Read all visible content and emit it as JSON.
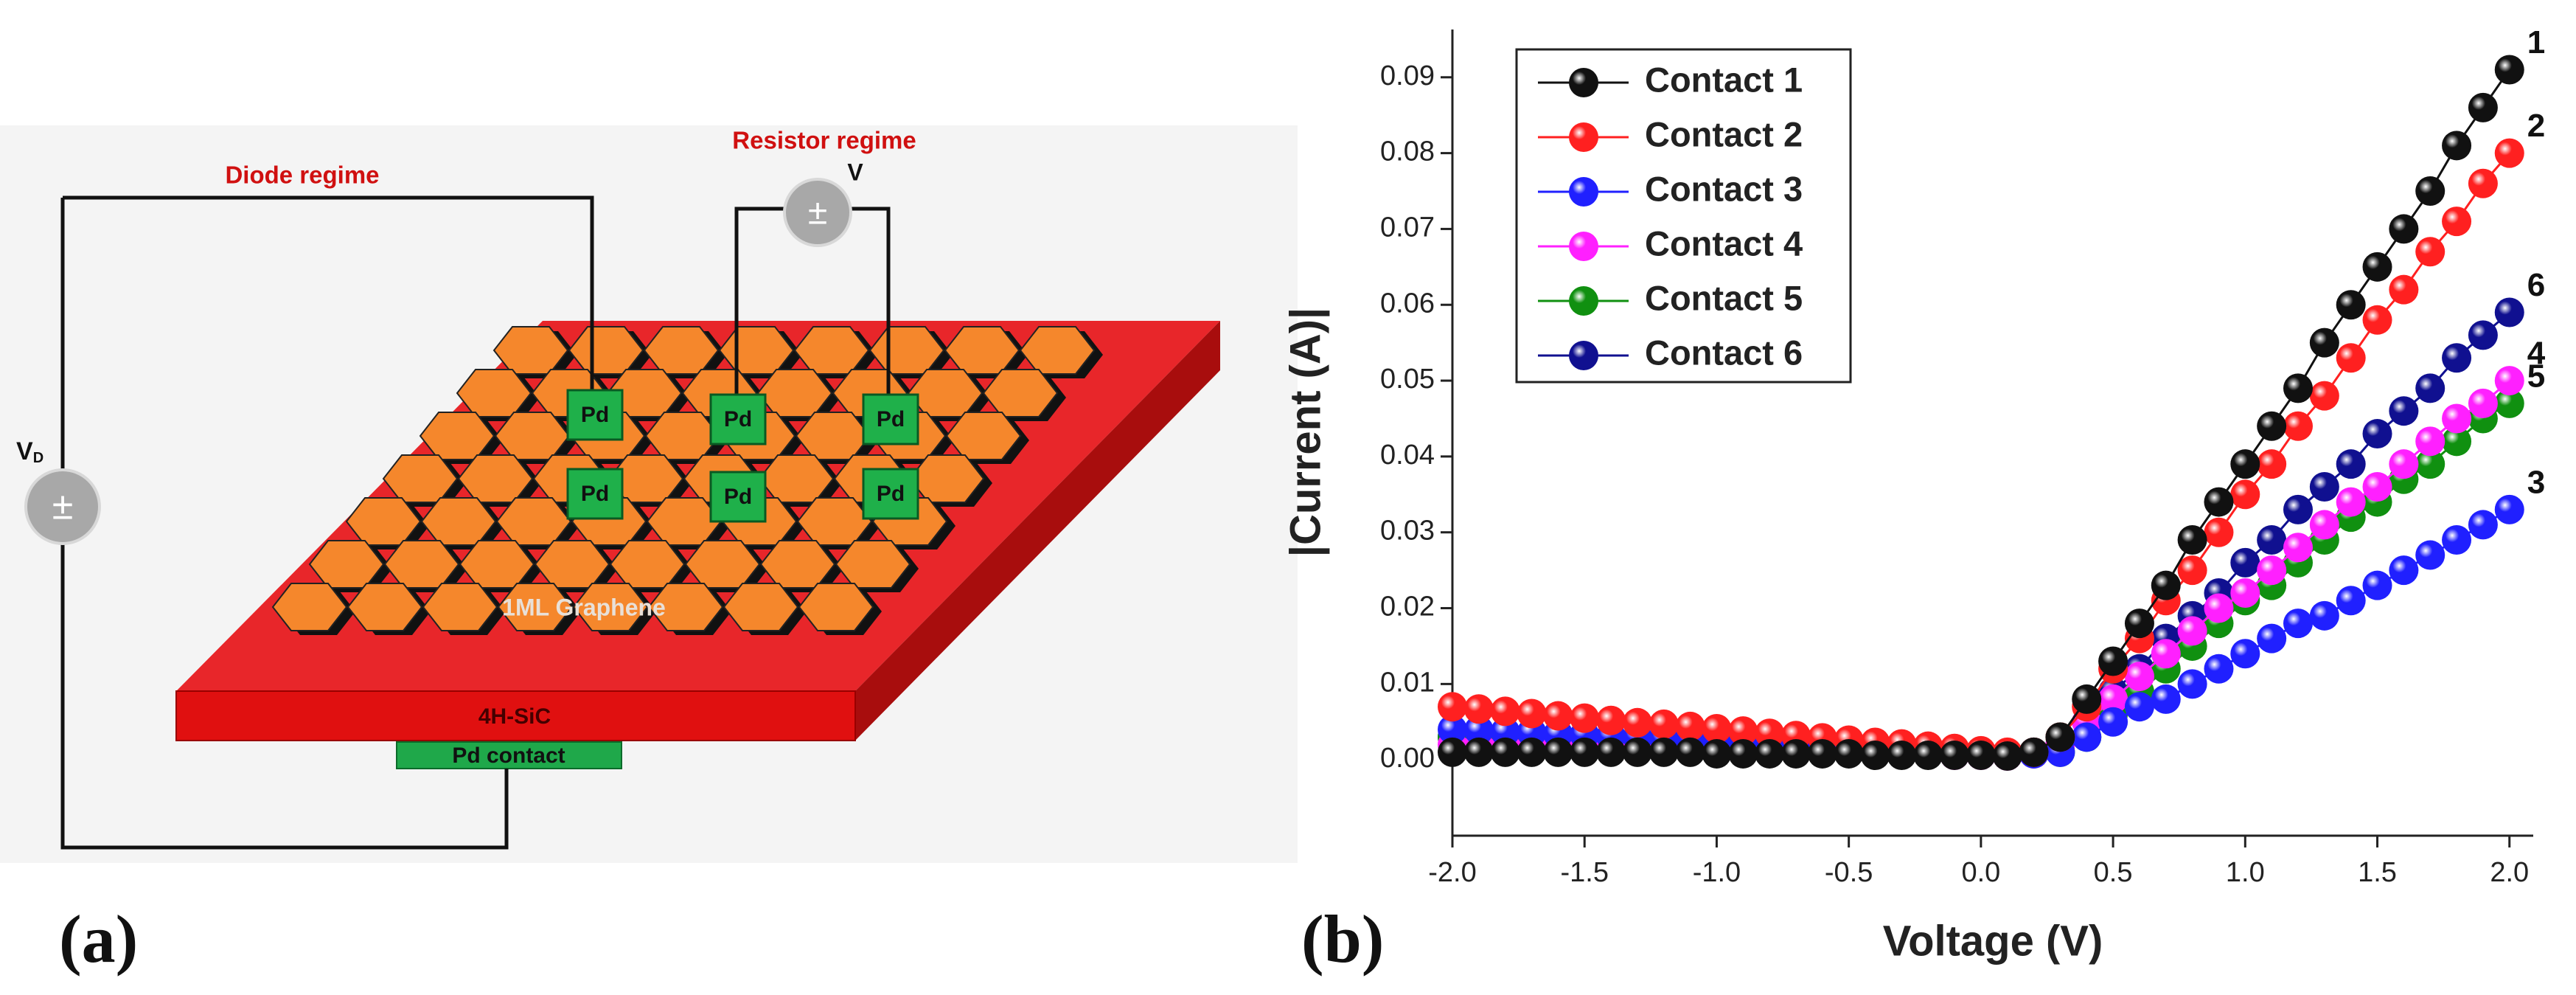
{
  "figure_a": {
    "panel_label": "(a)",
    "diode_regime": "Diode  regime",
    "resistor_regime": "Resistor regime",
    "v": "V",
    "vd": "V",
    "vd_sub": "D",
    "source_symbols": [
      "±",
      "±"
    ],
    "pd_labels": [
      "Pd",
      "Pd",
      "Pd",
      "Pd",
      "Pd",
      "Pd"
    ],
    "graphene": "1ML Graphene",
    "substrate": "4H-SiC",
    "back_contact": "Pd contact"
  },
  "figure_b": {
    "panel_label": "(b)"
  },
  "chart_data": {
    "type": "line",
    "x_label": "Voltage (V)",
    "y_label": "|Current (A)|",
    "x": [
      -2.0,
      -1.9,
      -1.8,
      -1.7,
      -1.6,
      -1.5,
      -1.4,
      -1.3,
      -1.2,
      -1.1,
      -1.0,
      -0.9,
      -0.8,
      -0.7,
      -0.6,
      -0.5,
      -0.4,
      -0.3,
      -0.2,
      -0.1,
      0.0,
      0.1,
      0.2,
      0.3,
      0.4,
      0.5,
      0.6,
      0.7,
      0.8,
      0.9,
      1.0,
      1.1,
      1.2,
      1.3,
      1.4,
      1.5,
      1.6,
      1.7,
      1.8,
      1.9,
      2.0
    ],
    "xlim": [
      -2.0,
      2.09
    ],
    "ylim": [
      -0.01,
      0.0963
    ],
    "xticks": [
      {
        "value": -2.0,
        "label": "-2.0"
      },
      {
        "value": -1.5,
        "label": "-1.5"
      },
      {
        "value": -1.0,
        "label": "-1.0"
      },
      {
        "value": -0.5,
        "label": "-0.5"
      },
      {
        "value": 0.0,
        "label": "0.0"
      },
      {
        "value": 0.5,
        "label": "0.5"
      },
      {
        "value": 1.0,
        "label": "1.0"
      },
      {
        "value": 1.5,
        "label": "1.5"
      },
      {
        "value": 2.0,
        "label": "2.0"
      }
    ],
    "yticks": [
      {
        "value": 0.0,
        "label": "0.00"
      },
      {
        "value": 0.01,
        "label": "0.01"
      },
      {
        "value": 0.02,
        "label": "0.02"
      },
      {
        "value": 0.03,
        "label": "0.03"
      },
      {
        "value": 0.04,
        "label": "0.04"
      },
      {
        "value": 0.05,
        "label": "0.05"
      },
      {
        "value": 0.06,
        "label": "0.06"
      },
      {
        "value": 0.07,
        "label": "0.07"
      },
      {
        "value": 0.08,
        "label": "0.08"
      },
      {
        "value": 0.09,
        "label": "0.09"
      }
    ],
    "legend": "upper left",
    "series": [
      {
        "name": "Contact 1",
        "end_label": "1",
        "color": "#111111",
        "values": [
          0.001,
          0.001,
          0.001,
          0.001,
          0.001,
          0.001,
          0.001,
          0.001,
          0.001,
          0.001,
          0.0008,
          0.0008,
          0.0008,
          0.0008,
          0.0008,
          0.0008,
          0.0006,
          0.0006,
          0.0006,
          0.0006,
          0.0006,
          0.0005,
          0.001,
          0.003,
          0.008,
          0.013,
          0.018,
          0.023,
          0.029,
          0.034,
          0.039,
          0.044,
          0.049,
          0.055,
          0.06,
          0.065,
          0.07,
          0.075,
          0.081,
          0.086,
          0.091
        ]
      },
      {
        "name": "Contact 2",
        "end_label": "2",
        "color": "#ff2020",
        "values": [
          0.007,
          0.0067,
          0.0064,
          0.0061,
          0.0058,
          0.0055,
          0.0052,
          0.0049,
          0.0047,
          0.0044,
          0.0041,
          0.0038,
          0.0035,
          0.0032,
          0.0029,
          0.0026,
          0.0023,
          0.0021,
          0.0018,
          0.0015,
          0.0012,
          0.001,
          0.001,
          0.003,
          0.007,
          0.012,
          0.016,
          0.021,
          0.025,
          0.03,
          0.035,
          0.039,
          0.044,
          0.048,
          0.053,
          0.058,
          0.062,
          0.067,
          0.071,
          0.076,
          0.08
        ]
      },
      {
        "name": "Contact 3",
        "end_label": "3",
        "color": "#2020ff",
        "values": [
          0.004,
          0.0039,
          0.0037,
          0.0036,
          0.0034,
          0.0033,
          0.0031,
          0.003,
          0.0028,
          0.0027,
          0.0025,
          0.0024,
          0.0022,
          0.0021,
          0.0019,
          0.0018,
          0.0016,
          0.0015,
          0.0013,
          0.0012,
          0.001,
          0.0008,
          0.0008,
          0.001,
          0.003,
          0.005,
          0.007,
          0.008,
          0.01,
          0.012,
          0.014,
          0.016,
          0.018,
          0.019,
          0.021,
          0.023,
          0.025,
          0.027,
          0.029,
          0.031,
          0.033
        ]
      },
      {
        "name": "Contact 4",
        "end_label": "4",
        "color": "#ff20ff",
        "values": [
          0.002,
          0.0019,
          0.0018,
          0.0018,
          0.0017,
          0.0016,
          0.0015,
          0.0015,
          0.0014,
          0.0013,
          0.0012,
          0.0012,
          0.0011,
          0.001,
          0.001,
          0.0009,
          0.0008,
          0.0008,
          0.0007,
          0.0006,
          0.0006,
          0.0005,
          0.0008,
          0.002,
          0.005,
          0.008,
          0.011,
          0.014,
          0.017,
          0.02,
          0.022,
          0.025,
          0.028,
          0.031,
          0.034,
          0.036,
          0.039,
          0.042,
          0.045,
          0.047,
          0.05
        ]
      },
      {
        "name": "Contact 5",
        "end_label": "5",
        "color": "#109010",
        "values": [
          0.003,
          0.0029,
          0.0028,
          0.0026,
          0.0025,
          0.0024,
          0.0023,
          0.0022,
          0.0021,
          0.0019,
          0.0018,
          0.0017,
          0.0016,
          0.0015,
          0.0014,
          0.0012,
          0.0011,
          0.001,
          0.0009,
          0.0008,
          0.0007,
          0.0006,
          0.0008,
          0.001,
          0.003,
          0.006,
          0.009,
          0.012,
          0.015,
          0.018,
          0.021,
          0.023,
          0.026,
          0.029,
          0.032,
          0.034,
          0.037,
          0.039,
          0.042,
          0.045,
          0.047
        ]
      },
      {
        "name": "Contact 6",
        "end_label": "6",
        "color": "#101090",
        "values": [
          0.003,
          0.0029,
          0.0028,
          0.0027,
          0.0026,
          0.0025,
          0.0024,
          0.0023,
          0.0022,
          0.0021,
          0.002,
          0.0019,
          0.0018,
          0.0017,
          0.0016,
          0.0015,
          0.0014,
          0.0013,
          0.0012,
          0.0011,
          0.001,
          0.0008,
          0.001,
          0.002,
          0.005,
          0.009,
          0.012,
          0.016,
          0.019,
          0.022,
          0.026,
          0.029,
          0.033,
          0.036,
          0.039,
          0.043,
          0.046,
          0.049,
          0.053,
          0.056,
          0.059
        ]
      }
    ]
  }
}
